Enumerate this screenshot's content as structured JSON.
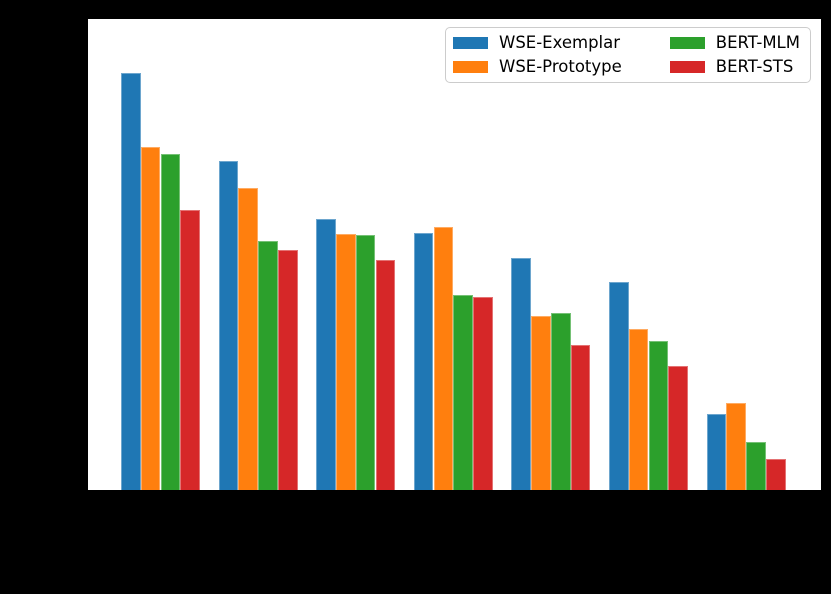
{
  "figure": {
    "background_color": "#000000",
    "plot_background_color": "#ffffff",
    "axis_spine_color": "#000000"
  },
  "chart_data": {
    "type": "bar",
    "title": "",
    "xlabel": "",
    "ylabel": "",
    "categories": [
      "",
      "",
      "",
      "",
      "",
      "",
      ""
    ],
    "ylim": [
      0,
      1
    ],
    "grid": false,
    "legend": {
      "position": "upper right",
      "columns": 2,
      "border_color": "#cccccc",
      "background": "#ffffff"
    },
    "series": [
      {
        "name": "WSE-Exemplar",
        "key": "wse-exemplar",
        "color": "#1f77b4",
        "values": [
          0.886,
          0.7,
          0.577,
          0.548,
          0.495,
          0.444,
          0.165
        ]
      },
      {
        "name": "WSE-Prototype",
        "key": "wse-prototype",
        "color": "#ff7f0e",
        "values": [
          0.729,
          0.643,
          0.545,
          0.56,
          0.372,
          0.345,
          0.188
        ]
      },
      {
        "name": "BERT-MLM",
        "key": "bert-mlm",
        "color": "#2ca02c",
        "values": [
          0.715,
          0.531,
          0.543,
          0.416,
          0.378,
          0.319,
          0.106
        ]
      },
      {
        "name": "BERT-STS",
        "key": "bert-sts",
        "color": "#d62728",
        "values": [
          0.596,
          0.512,
          0.491,
          0.412,
          0.311,
          0.266,
          0.07
        ]
      }
    ]
  }
}
